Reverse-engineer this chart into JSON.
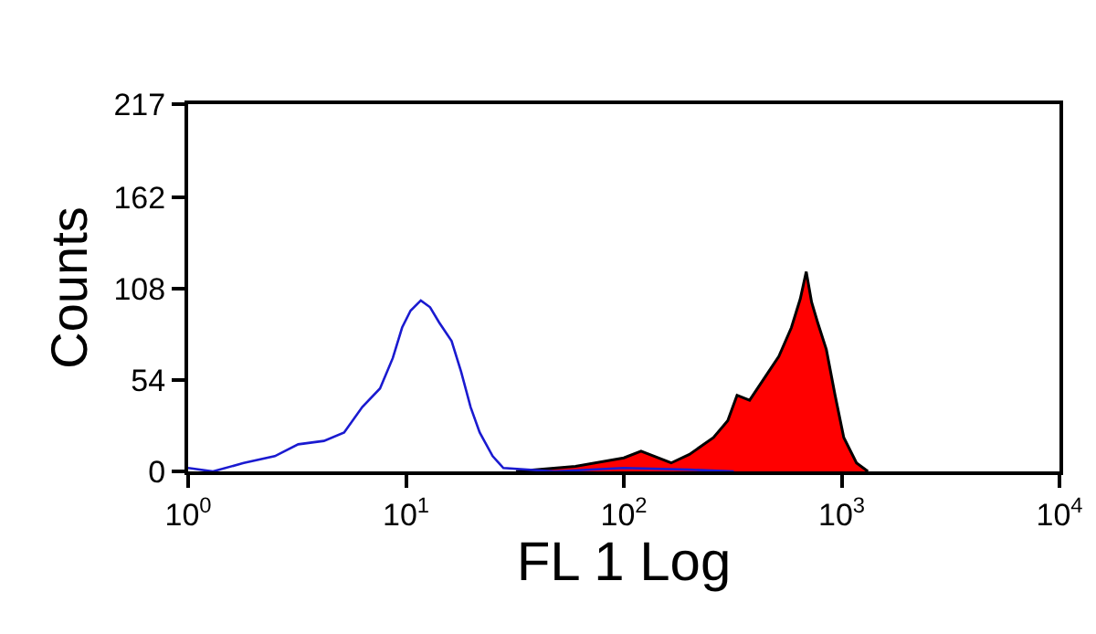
{
  "chart_data": {
    "type": "line",
    "xlabel": "FL 1 Log",
    "ylabel": "Counts",
    "log": "x",
    "grid": false,
    "marker": "none",
    "xlim": [
      1,
      10000
    ],
    "xticks": [
      {
        "value": 1,
        "label": "10$^{0}$"
      },
      {
        "value": 10,
        "label": "10$^{1}$"
      },
      {
        "value": 100,
        "label": "10$^{2}$"
      },
      {
        "value": 1000,
        "label": "10$^{3}$"
      },
      {
        "value": 10000,
        "label": "10$^{4}$"
      }
    ],
    "ylim": [
      0,
      217
    ],
    "yticks": [
      0,
      54,
      108,
      162,
      217
    ],
    "series": [
      {
        "color": "#1a1ad0",
        "x": [
          1,
          1.3,
          1.8,
          2.5,
          3.2,
          4.2,
          5.2,
          6.3,
          7.6,
          8.7,
          9.6,
          10.5,
          11.7,
          12.9,
          14.2,
          16.2,
          17.9,
          19.8,
          21.8,
          25,
          28,
          48,
          100,
          200,
          320
        ],
        "values": [
          2,
          0,
          5,
          9,
          16,
          18,
          23,
          38,
          49,
          67,
          85,
          95,
          101,
          97,
          88,
          77,
          59,
          38,
          23,
          9,
          2,
          0,
          2,
          1,
          0
        ]
      },
      {
        "type": "area",
        "color": "#ff0000",
        "x": [
          32,
          60,
          100,
          120,
          165,
          200,
          258,
          300,
          331,
          378,
          457,
          515,
          588,
          646,
          688,
          728,
          776,
          851,
          933,
          1023,
          1170,
          1320
        ],
        "values": [
          0,
          3,
          8,
          12,
          5,
          10,
          20,
          30,
          45,
          42,
          58,
          68,
          85,
          102,
          118,
          100,
          88,
          72,
          45,
          20,
          5,
          0
        ]
      }
    ]
  }
}
